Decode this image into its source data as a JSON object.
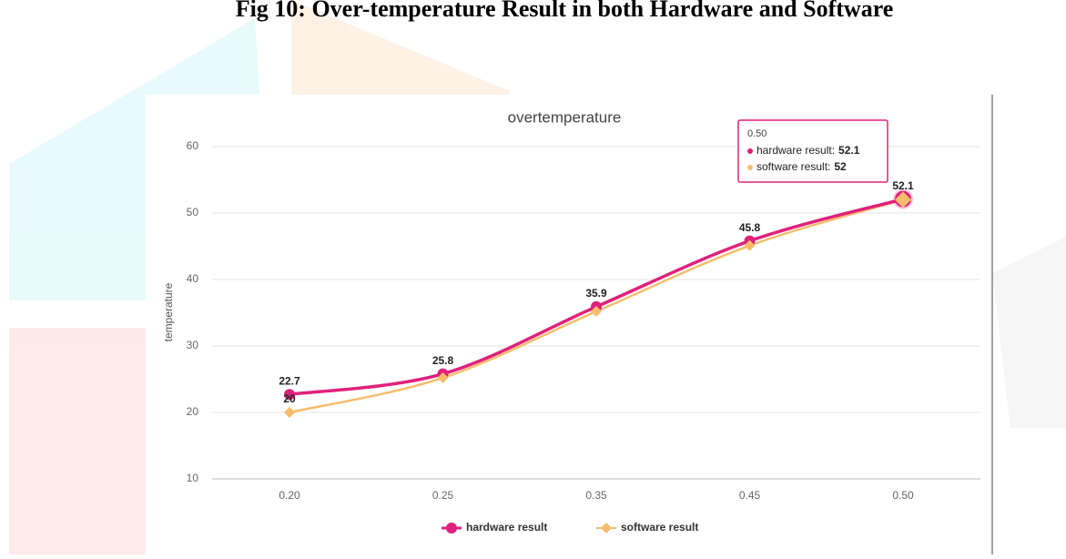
{
  "figure_caption": "Fig 10: Over-temperature Result in both Hardware and Software",
  "chart_data": {
    "type": "line",
    "title": "overtemperature",
    "y_label": "temperature",
    "categories": [
      "0.20",
      "0.25",
      "0.35",
      "0.45",
      "0.50"
    ],
    "series": [
      {
        "name": "hardware result",
        "color": "#e0217b",
        "marker": "circle",
        "values": [
          22.7,
          25.8,
          35.9,
          45.8,
          52.1
        ]
      },
      {
        "name": "software result",
        "color": "#f7bd6c",
        "marker": "diamond",
        "values": [
          20,
          25.2,
          35.2,
          45.1,
          52
        ],
        "value_labels": [
          "20",
          null,
          null,
          null,
          null
        ]
      }
    ],
    "ylim": [
      10,
      60
    ],
    "yticks": [
      10,
      20,
      30,
      40,
      50,
      60
    ],
    "grid": true,
    "smooth": true,
    "legend": "bottom",
    "tooltip": {
      "title": "0.50",
      "rows": [
        {
          "label": "hardware result:",
          "value": 52.1
        },
        {
          "label": "software result:",
          "value": 52
        }
      ]
    }
  }
}
